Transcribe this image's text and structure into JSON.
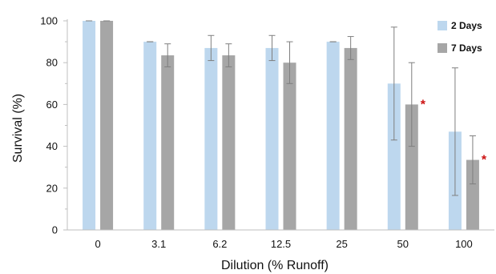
{
  "chart_data": {
    "type": "bar",
    "xlabel": "Dilution (% Runoff)",
    "ylabel": "Survival (%)",
    "ylim": [
      0,
      100
    ],
    "yticks": [
      0,
      20,
      40,
      60,
      80,
      100
    ],
    "grid": false,
    "legend_position": "top-right",
    "categories": [
      "0",
      "3.1",
      "6.2",
      "12.5",
      "25",
      "50",
      "100"
    ],
    "series": [
      {
        "name": "2 Days",
        "color": "#bdd7ee",
        "values": [
          100,
          90,
          87,
          87,
          90,
          70,
          47
        ],
        "error": [
          0,
          0,
          6,
          6,
          0,
          27,
          30.5
        ],
        "significant": [
          false,
          false,
          false,
          false,
          false,
          false,
          false
        ]
      },
      {
        "name": "7 Days",
        "color": "#a6a6a6",
        "values": [
          100,
          83.5,
          83.5,
          80,
          87,
          60,
          33.5
        ],
        "error": [
          0,
          5.5,
          5.5,
          10,
          5.5,
          20,
          11.5
        ],
        "significant": [
          false,
          false,
          false,
          false,
          false,
          true,
          true
        ]
      }
    ],
    "significance_marker": "*",
    "significance_color": "#cc1111"
  }
}
